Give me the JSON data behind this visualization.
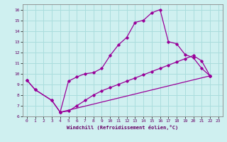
{
  "xlabel": "Windchill (Refroidissement éolien,°C)",
  "bg_color": "#cff0f0",
  "grid_color": "#aadddd",
  "line_color": "#990099",
  "xlim": [
    -0.5,
    23.5
  ],
  "ylim": [
    6,
    16.5
  ],
  "xticks": [
    0,
    1,
    2,
    3,
    4,
    5,
    6,
    7,
    8,
    9,
    10,
    11,
    12,
    13,
    14,
    15,
    16,
    17,
    18,
    19,
    20,
    21,
    22,
    23
  ],
  "yticks": [
    6,
    7,
    8,
    9,
    10,
    11,
    12,
    13,
    14,
    15,
    16
  ],
  "line1_x": [
    0,
    1,
    3,
    4,
    5,
    6,
    7,
    8,
    9,
    10,
    11,
    12,
    13,
    14,
    15,
    16,
    17,
    18,
    19,
    20,
    21,
    22
  ],
  "line1_y": [
    9.4,
    8.5,
    7.5,
    6.4,
    9.3,
    9.7,
    10.0,
    10.1,
    10.5,
    11.7,
    12.7,
    13.4,
    14.8,
    15.0,
    15.7,
    16.0,
    13.0,
    12.8,
    11.8,
    11.5,
    10.5,
    9.8
  ],
  "line2_x": [
    0,
    1,
    3,
    4,
    22
  ],
  "line2_y": [
    9.4,
    8.5,
    7.5,
    6.4,
    9.8
  ],
  "line3_x": [
    4,
    5,
    6,
    7,
    8,
    9,
    10,
    11,
    12,
    13,
    14,
    15,
    16,
    17,
    18,
    19,
    20,
    21,
    22
  ],
  "line3_y": [
    6.4,
    6.5,
    7.0,
    7.5,
    8.0,
    8.4,
    8.7,
    9.0,
    9.3,
    9.6,
    9.9,
    10.2,
    10.5,
    10.8,
    11.1,
    11.4,
    11.7,
    11.2,
    9.8
  ]
}
